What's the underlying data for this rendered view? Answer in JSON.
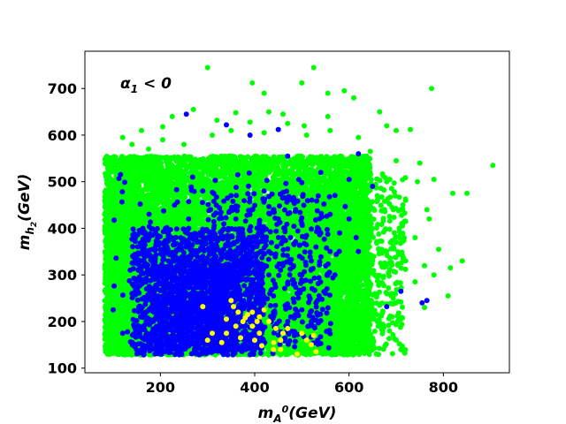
{
  "chart_data": {
    "type": "scatter",
    "title": "",
    "xlabel_base": "m",
    "xlabel_sub": "A",
    "xlabel_sup": "0",
    "xlabel_unit": "(GeV)",
    "ylabel_base": "m",
    "ylabel_sub": "h",
    "ylabel_subsub": "2",
    "ylabel_unit": "(GeV)",
    "annotation": {
      "symbol": "α",
      "sub": "1",
      "rest": " < 0",
      "x": 105,
      "y": 705
    },
    "xlim": [
      40,
      940
    ],
    "ylim": [
      90,
      780
    ],
    "xticks": [
      200,
      400,
      600,
      800
    ],
    "yticks": [
      100,
      200,
      300,
      400,
      500,
      600,
      700
    ],
    "xtick_labels": [
      "200",
      "400",
      "600",
      "800"
    ],
    "ytick_labels": [
      "100",
      "200",
      "300",
      "400",
      "500",
      "600",
      "700"
    ],
    "grid": false,
    "legend": "none",
    "series": [
      {
        "color": "#00ff00",
        "points": [
          [
            300,
            745
          ],
          [
            525,
            745
          ],
          [
            500,
            712
          ],
          [
            395,
            712
          ],
          [
            420,
            690
          ],
          [
            590,
            695
          ],
          [
            775,
            700
          ],
          [
            555,
            690
          ],
          [
            610,
            680
          ],
          [
            665,
            650
          ],
          [
            270,
            655
          ],
          [
            430,
            650
          ],
          [
            360,
            648
          ],
          [
            555,
            640
          ],
          [
            460,
            645
          ],
          [
            225,
            640
          ],
          [
            680,
            620
          ],
          [
            700,
            610
          ],
          [
            730,
            612
          ],
          [
            320,
            632
          ],
          [
            390,
            628
          ],
          [
            470,
            625
          ],
          [
            505,
            620
          ],
          [
            205,
            618
          ],
          [
            160,
            610
          ],
          [
            120,
            595
          ],
          [
            140,
            580
          ],
          [
            175,
            570
          ],
          [
            205,
            590
          ],
          [
            250,
            580
          ],
          [
            310,
            600
          ],
          [
            350,
            610
          ],
          [
            420,
            605
          ],
          [
            510,
            600
          ],
          [
            560,
            610
          ],
          [
            620,
            595
          ],
          [
            645,
            565
          ],
          [
            700,
            545
          ],
          [
            750,
            540
          ],
          [
            780,
            505
          ],
          [
            745,
            500
          ],
          [
            720,
            460
          ],
          [
            710,
            440
          ],
          [
            765,
            440
          ],
          [
            820,
            475
          ],
          [
            850,
            475
          ],
          [
            905,
            535
          ],
          [
            720,
            415
          ],
          [
            770,
            420
          ],
          [
            740,
            380
          ],
          [
            790,
            355
          ],
          [
            700,
            370
          ],
          [
            720,
            330
          ],
          [
            760,
            320
          ],
          [
            815,
            315
          ],
          [
            840,
            330
          ],
          [
            780,
            300
          ],
          [
            740,
            285
          ],
          [
            810,
            255
          ],
          [
            690,
            260
          ],
          [
            710,
            140
          ],
          [
            760,
            230
          ],
          [
            665,
            235
          ],
          [
            660,
            200
          ],
          [
            640,
            180
          ],
          [
            600,
            160
          ],
          [
            575,
            175
          ],
          [
            610,
            250
          ],
          [
            640,
            300
          ],
          [
            630,
            340
          ],
          [
            680,
            350
          ],
          [
            640,
            420
          ],
          [
            660,
            470
          ],
          [
            600,
            500
          ],
          [
            640,
            520
          ],
          [
            680,
            500
          ]
        ]
      },
      {
        "color": "#0000ff",
        "points": [
          [
            255,
            645
          ],
          [
            340,
            622
          ],
          [
            450,
            612
          ],
          [
            390,
            600
          ],
          [
            620,
            560
          ],
          [
            470,
            555
          ],
          [
            600,
            505
          ],
          [
            650,
            490
          ],
          [
            540,
            520
          ],
          [
            500,
            498
          ],
          [
            440,
            440
          ],
          [
            560,
            430
          ],
          [
            410,
            405
          ],
          [
            360,
            420
          ],
          [
            300,
            395
          ],
          [
            250,
            370
          ],
          [
            200,
            355
          ],
          [
            160,
            330
          ],
          [
            170,
            305
          ],
          [
            140,
            260
          ],
          [
            100,
            225
          ],
          [
            120,
            175
          ],
          [
            140,
            155
          ],
          [
            160,
            140
          ],
          [
            200,
            180
          ],
          [
            240,
            175
          ],
          [
            280,
            160
          ],
          [
            300,
            140
          ],
          [
            330,
            135
          ],
          [
            360,
            150
          ],
          [
            330,
            180
          ],
          [
            300,
            200
          ],
          [
            270,
            225
          ],
          [
            240,
            250
          ],
          [
            210,
            270
          ],
          [
            230,
            300
          ],
          [
            260,
            320
          ],
          [
            290,
            340
          ],
          [
            320,
            305
          ],
          [
            350,
            285
          ],
          [
            380,
            260
          ],
          [
            410,
            240
          ],
          [
            440,
            255
          ],
          [
            470,
            280
          ],
          [
            500,
            300
          ],
          [
            520,
            330
          ],
          [
            530,
            360
          ],
          [
            540,
            390
          ],
          [
            560,
            350
          ],
          [
            580,
            390
          ],
          [
            600,
            420
          ],
          [
            615,
            380
          ],
          [
            620,
            350
          ],
          [
            570,
            300
          ],
          [
            550,
            260
          ],
          [
            530,
            240
          ],
          [
            500,
            225
          ],
          [
            470,
            200
          ],
          [
            440,
            220
          ],
          [
            410,
            200
          ],
          [
            380,
            180
          ],
          [
            350,
            170
          ],
          [
            320,
            230
          ],
          [
            290,
            260
          ],
          [
            260,
            290
          ],
          [
            230,
            330
          ],
          [
            200,
            310
          ],
          [
            180,
            230
          ],
          [
            170,
            200
          ],
          [
            190,
            160
          ],
          [
            220,
            145
          ],
          [
            250,
            150
          ],
          [
            280,
            190
          ],
          [
            310,
            210
          ],
          [
            340,
            250
          ],
          [
            370,
            230
          ],
          [
            400,
            280
          ],
          [
            430,
            300
          ],
          [
            460,
            320
          ],
          [
            490,
            260
          ],
          [
            520,
            200
          ],
          [
            680,
            232
          ],
          [
            710,
            265
          ],
          [
            755,
            240
          ],
          [
            765,
            245
          ],
          [
            400,
            310
          ],
          [
            330,
            320
          ],
          [
            270,
            270
          ],
          [
            210,
            220
          ],
          [
            350,
            200
          ],
          [
            380,
            330
          ],
          [
            430,
            350
          ],
          [
            460,
            380
          ],
          [
            500,
            410
          ],
          [
            480,
            460
          ],
          [
            420,
            480
          ],
          [
            350,
            470
          ],
          [
            290,
            480
          ],
          [
            230,
            450
          ],
          [
            260,
            420
          ],
          [
            320,
            360
          ],
          [
            380,
            360
          ],
          [
            450,
            420
          ]
        ]
      },
      {
        "color": "#ffff00",
        "points": [
          [
            290,
            232
          ],
          [
            350,
            245
          ],
          [
            355,
            232
          ],
          [
            385,
            215
          ],
          [
            395,
            220
          ],
          [
            410,
            210
          ],
          [
            420,
            225
          ],
          [
            375,
            200
          ],
          [
            360,
            190
          ],
          [
            395,
            190
          ],
          [
            410,
            175
          ],
          [
            430,
            200
          ],
          [
            370,
            165
          ],
          [
            340,
            175
          ],
          [
            310,
            175
          ],
          [
            300,
            160
          ],
          [
            330,
            155
          ],
          [
            400,
            160
          ],
          [
            415,
            148
          ],
          [
            440,
            155
          ],
          [
            455,
            160
          ],
          [
            460,
            175
          ],
          [
            470,
            185
          ],
          [
            445,
            185
          ],
          [
            455,
            140
          ],
          [
            440,
            140
          ],
          [
            500,
            175
          ],
          [
            510,
            160
          ],
          [
            520,
            150
          ],
          [
            530,
            135
          ],
          [
            490,
            130
          ],
          [
            525,
            170
          ],
          [
            365,
            220
          ],
          [
            380,
            208
          ],
          [
            405,
            200
          ],
          [
            340,
            205
          ]
        ]
      }
    ],
    "clouds": [
      {
        "color": "#00ff00",
        "count": 14000,
        "seed": 7,
        "regions": [
          {
            "x": [
              82,
              645
            ],
            "y": [
              128,
              555
            ],
            "w": 0.72
          },
          {
            "x": [
              82,
              180
            ],
            "y": [
              128,
              470
            ],
            "w": 0.12
          },
          {
            "x": [
              120,
              620
            ],
            "y": [
              128,
              420
            ],
            "w": 0.12
          },
          {
            "x": [
              560,
              720
            ],
            "y": [
              128,
              520
            ],
            "w": 0.04
          }
        ]
      },
      {
        "color": "#0000ff",
        "count": 2600,
        "seed": 13,
        "regions": [
          {
            "x": [
              140,
              420
            ],
            "y": [
              128,
              400
            ],
            "w": 0.55
          },
          {
            "x": [
              180,
              360
            ],
            "y": [
              140,
              320
            ],
            "w": 0.25
          },
          {
            "x": [
              300,
              560
            ],
            "y": [
              150,
              480
            ],
            "w": 0.15
          },
          {
            "x": [
              100,
              600
            ],
            "y": [
              128,
              520
            ],
            "w": 0.05
          }
        ]
      }
    ]
  }
}
